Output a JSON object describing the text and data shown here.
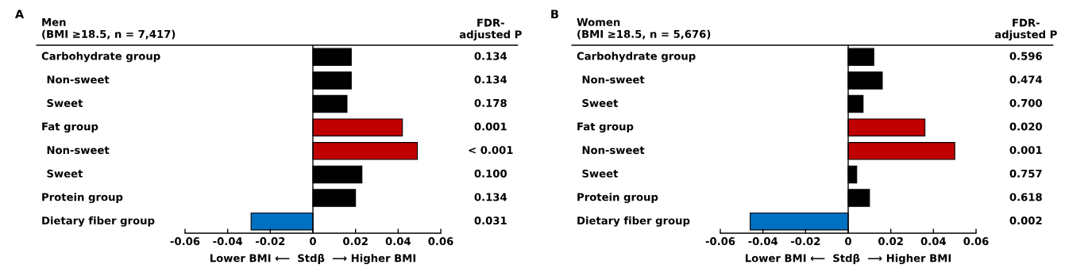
{
  "chart_data": [
    {
      "type": "bar",
      "orientation": "horizontal",
      "xlabel": "Lower BMI ⟵  Stdβ  ⟶ Higher BMI",
      "categories": [
        "Carbohydrate group",
        "Non-sweet",
        "Sweet",
        "Fat group",
        "Non-sweet",
        "Sweet",
        "Protein group",
        "Dietary fiber group"
      ],
      "values": [
        0.018,
        0.018,
        0.016,
        0.042,
        0.049,
        0.023,
        0.02,
        -0.029
      ],
      "ref_lines": [
        {
          "axis": "x",
          "value": 0,
          "color": "#000000"
        }
      ],
      "colors": [
        "#000000",
        "#000000",
        "#000000",
        "#c00000",
        "#c00000",
        "#000000",
        "#000000",
        "#0070c0"
      ],
      "xlim": [
        -0.06,
        0.06
      ],
      "xticks": [
        -0.06,
        -0.04,
        -0.02,
        0,
        0.02,
        0.04,
        0.06
      ],
      "tick_labels": "x",
      "grid": false,
      "legend": false,
      "annotations": [
        "A",
        "Men",
        "(BMI ≥18.5, n = 7,417)",
        "FDR-\nadjusted P",
        "0.134",
        "0.134",
        "0.178",
        "0.001",
        "< 0.001",
        "0.100",
        "0.134",
        "0.031"
      ]
    },
    {
      "type": "bar",
      "orientation": "horizontal",
      "xlabel": "Lower BMI ⟵  Stdβ  ⟶ Higher BMI",
      "categories": [
        "Carbohydrate group",
        "Non-sweet",
        "Sweet",
        "Fat group",
        "Non-sweet",
        "Sweet",
        "Protein group",
        "Dietary fiber group"
      ],
      "values": [
        0.012,
        0.016,
        0.007,
        0.036,
        0.05,
        0.004,
        0.01,
        -0.046
      ],
      "ref_lines": [
        {
          "axis": "x",
          "value": 0,
          "color": "#000000"
        }
      ],
      "colors": [
        "#000000",
        "#000000",
        "#000000",
        "#c00000",
        "#c00000",
        "#000000",
        "#000000",
        "#0070c0"
      ],
      "xlim": [
        -0.06,
        0.06
      ],
      "xticks": [
        -0.06,
        -0.04,
        -0.02,
        0,
        0.02,
        0.04,
        0.06
      ],
      "tick_labels": "x",
      "grid": false,
      "legend": false,
      "annotations": [
        "B",
        "Women",
        "(BMI ≥18.5, n = 5,676)",
        "FDR-\nadjusted P",
        "0.596",
        "0.474",
        "0.700",
        "0.020",
        "0.001",
        "0.757",
        "0.618",
        "0.002"
      ]
    }
  ]
}
